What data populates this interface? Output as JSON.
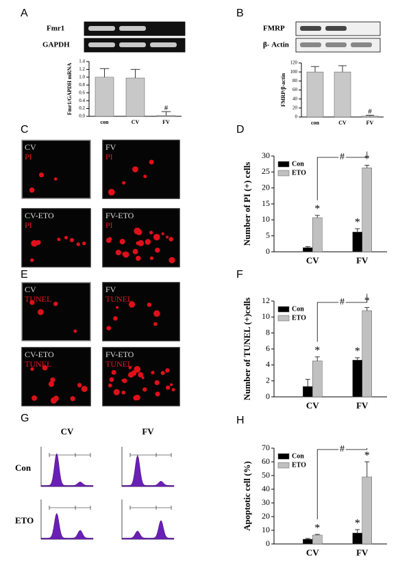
{
  "panel_labels": [
    "A",
    "B",
    "C",
    "D",
    "E",
    "F",
    "G",
    "H"
  ],
  "gels": [
    {
      "labels": [
        "Fmr1",
        "GAPDH"
      ]
    },
    {
      "labels": [
        "FMRP",
        "β- Actin"
      ]
    }
  ],
  "micrographs": [
    {
      "images": [
        {
          "label": "CV",
          "stain": "PI"
        },
        {
          "label": "FV",
          "stain": "PI"
        },
        {
          "label": "CV-ETO",
          "stain": "PI"
        },
        {
          "label": "FV-ETO",
          "stain": "PI"
        }
      ]
    },
    {
      "images": [
        {
          "label": "CV",
          "stain": "TUNEL"
        },
        {
          "label": "FV",
          "stain": "TUNEL"
        },
        {
          "label": "CV-ETO",
          "stain": "TUNEL"
        },
        {
          "label": "FV-ETO",
          "stain": "TUNEL"
        }
      ]
    }
  ],
  "flow": {
    "columns": [
      "CV",
      "FV"
    ],
    "rows": [
      "Con",
      "ETO"
    ]
  },
  "chart_data": [
    {
      "type": "bar",
      "y_label": "Fmr1/GAPDH mRNA",
      "categories": [
        "con",
        "CV",
        "FV"
      ],
      "values": [
        1.0,
        0.98,
        0.02
      ],
      "errors": [
        0.22,
        0.22,
        0.1
      ],
      "markers": [
        null,
        null,
        "#"
      ],
      "color": "#c8c8c8",
      "ylim": [
        0,
        1.4
      ],
      "yticks": [
        {
          "value": 0,
          "label": "0.0"
        },
        0.2,
        0.4,
        0.6,
        0.8,
        {
          "value": 1,
          "label": "1.0"
        },
        1.2,
        1.4
      ]
    },
    {
      "type": "bar",
      "y_label": "FMRP/β-actin",
      "categories": [
        "con",
        "CV",
        "FV"
      ],
      "values": [
        100,
        100,
        2
      ],
      "errors": [
        12,
        14,
        2
      ],
      "markers": [
        null,
        null,
        "#"
      ],
      "color": "#c8c8c8",
      "ylim": [
        0,
        120
      ],
      "yticks": [
        0,
        20,
        40,
        60,
        80,
        100,
        120
      ]
    },
    {
      "type": "bar",
      "y_label": "Number of PI (+) cells",
      "categories": [
        "CV",
        "FV"
      ],
      "series": [
        {
          "name": "Con",
          "color": "#000000",
          "values": [
            1.3,
            6.2
          ],
          "errors": [
            0.3,
            1.0
          ],
          "markers": [
            null,
            "*"
          ]
        },
        {
          "name": "ETO",
          "color": "#c0c0c0",
          "values": [
            10.7,
            26.3
          ],
          "errors": [
            0.7,
            0.8
          ],
          "markers": [
            "*",
            "*"
          ]
        }
      ],
      "bracket_label": "#",
      "ylim": [
        0,
        30
      ],
      "yticks": [
        0,
        5,
        10,
        15,
        20,
        25,
        30
      ]
    },
    {
      "type": "bar",
      "y_label": "Number of TUNEL (+)cells",
      "categories": [
        "CV",
        "FV"
      ],
      "series": [
        {
          "name": "Con",
          "color": "#000000",
          "values": [
            1.3,
            4.6
          ],
          "errors": [
            0.9,
            0.3
          ],
          "markers": [
            null,
            "*"
          ]
        },
        {
          "name": "ETO",
          "color": "#c0c0c0",
          "values": [
            4.5,
            10.8
          ],
          "errors": [
            0.5,
            0.4
          ],
          "markers": [
            "*",
            "*"
          ]
        }
      ],
      "bracket_label": "#",
      "ylim": [
        0,
        12
      ],
      "yticks": [
        0,
        2,
        4,
        6,
        8,
        10,
        12
      ]
    },
    {
      "type": "bar",
      "y_label": "Apoptotic cell (%)",
      "categories": [
        "CV",
        "FV"
      ],
      "series": [
        {
          "name": "Con",
          "color": "#000000",
          "values": [
            3.5,
            8
          ],
          "errors": [
            0.5,
            2.5
          ],
          "markers": [
            null,
            "*"
          ]
        },
        {
          "name": "ETO",
          "color": "#c0c0c0",
          "values": [
            6.5,
            49
          ],
          "errors": [
            0.5,
            11
          ],
          "markers": [
            "*",
            "*"
          ]
        }
      ],
      "bracket_label": "#",
      "ylim": [
        0,
        70
      ],
      "yticks": [
        0,
        10,
        20,
        30,
        40,
        50,
        60,
        70
      ]
    }
  ]
}
